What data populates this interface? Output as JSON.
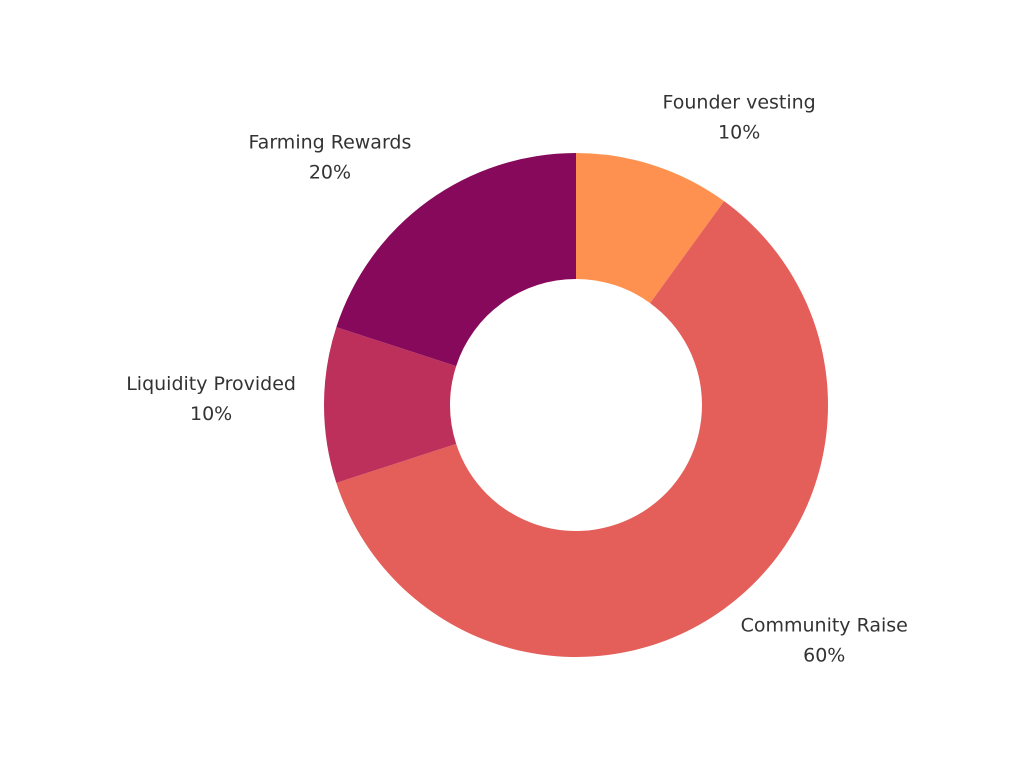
{
  "chart_data": {
    "type": "pie",
    "hole": true,
    "slices": [
      {
        "label": "Founder vesting",
        "value": 10,
        "value_label": "10%",
        "color": "#fe9150"
      },
      {
        "label": "Community Raise",
        "value": 60,
        "value_label": "60%",
        "color": "#e45e5a"
      },
      {
        "label": "Liquidity Provided",
        "value": 10,
        "value_label": "10%",
        "color": "#bc305b"
      },
      {
        "label": "Farming Rewards",
        "value": 20,
        "value_label": "20%",
        "color": "#87095c"
      }
    ]
  }
}
